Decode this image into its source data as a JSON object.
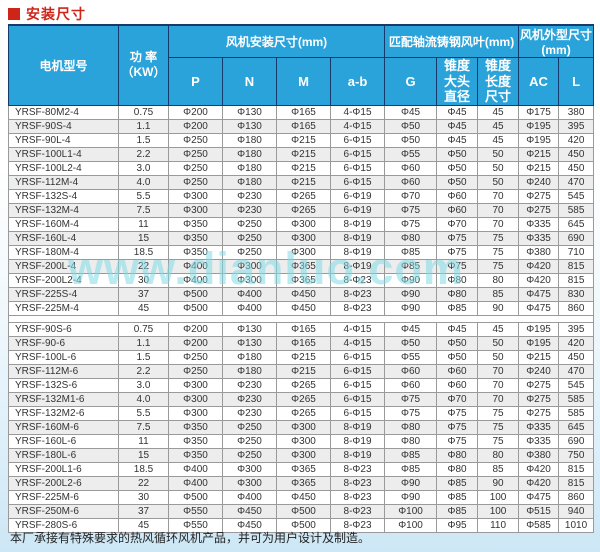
{
  "page": {
    "title": "安装尺寸",
    "watermark": "www.dianluo.com",
    "footer_note": "本厂承接有特殊要求的热风循环风机产品，并可为用户设计及制造。",
    "colors": {
      "header_blue": "#2aa2da",
      "title_red": "#cf2418",
      "navy_border": "#173a6d",
      "alt_row": "#ededed"
    }
  },
  "table": {
    "group_headers": {
      "model": "电机型号",
      "power_line1": "功 率",
      "power_line2": "（KW）",
      "install": "风机安装尺寸(mm)",
      "blade": "匹配轴流铸钢风叶(mm)",
      "outline": "风机外型尺寸(mm)"
    },
    "subheaders": [
      "P",
      "N",
      "M",
      "a-b",
      "G",
      "锥度大头直径",
      "锥度长度尺寸",
      "AC",
      "L"
    ],
    "sections": {
      "pole4": [
        [
          "YRSF-80M2-4",
          "0.75",
          "Φ200",
          "Φ130",
          "Φ165",
          "4-Φ15",
          "Φ45",
          "Φ45",
          "45",
          "Φ175",
          "380"
        ],
        [
          "YRSF-90S-4",
          "1.1",
          "Φ200",
          "Φ130",
          "Φ165",
          "4-Φ15",
          "Φ50",
          "Φ45",
          "45",
          "Φ195",
          "395"
        ],
        [
          "YRSF-90L-4",
          "1.5",
          "Φ250",
          "Φ180",
          "Φ215",
          "6-Φ15",
          "Φ50",
          "Φ45",
          "45",
          "Φ195",
          "420"
        ],
        [
          "YRSF-100L1-4",
          "2.2",
          "Φ250",
          "Φ180",
          "Φ215",
          "6-Φ15",
          "Φ55",
          "Φ50",
          "50",
          "Φ215",
          "450"
        ],
        [
          "YRSF-100L2-4",
          "3.0",
          "Φ250",
          "Φ180",
          "Φ215",
          "6-Φ15",
          "Φ60",
          "Φ50",
          "50",
          "Φ215",
          "450"
        ],
        [
          "YRSF-112M-4",
          "4.0",
          "Φ250",
          "Φ180",
          "Φ215",
          "6-Φ15",
          "Φ60",
          "Φ50",
          "50",
          "Φ240",
          "470"
        ],
        [
          "YRSF-132S-4",
          "5.5",
          "Φ300",
          "Φ230",
          "Φ265",
          "6-Φ19",
          "Φ70",
          "Φ60",
          "70",
          "Φ275",
          "545"
        ],
        [
          "YRSF-132M-4",
          "7.5",
          "Φ300",
          "Φ230",
          "Φ265",
          "6-Φ19",
          "Φ75",
          "Φ60",
          "70",
          "Φ275",
          "585"
        ],
        [
          "YRSF-160M-4",
          "11",
          "Φ350",
          "Φ250",
          "Φ300",
          "8-Φ19",
          "Φ75",
          "Φ70",
          "70",
          "Φ335",
          "645"
        ],
        [
          "YRSF-160L-4",
          "15",
          "Φ350",
          "Φ250",
          "Φ300",
          "8-Φ19",
          "Φ80",
          "Φ75",
          "75",
          "Φ335",
          "690"
        ],
        [
          "YRSF-180M-4",
          "18.5",
          "Φ350",
          "Φ250",
          "Φ300",
          "8-Φ19",
          "Φ85",
          "Φ75",
          "75",
          "Φ380",
          "710"
        ],
        [
          "YRSF-200L-4",
          "22",
          "Φ400",
          "Φ300",
          "Φ365",
          "8-Φ19",
          "Φ85",
          "Φ75",
          "75",
          "Φ420",
          "815"
        ],
        [
          "YRSF-200L2-4",
          "30",
          "Φ400",
          "Φ300",
          "Φ365",
          "8-Φ23",
          "Φ90",
          "Φ80",
          "80",
          "Φ420",
          "815"
        ],
        [
          "YRSF-225S-4",
          "37",
          "Φ500",
          "Φ400",
          "Φ450",
          "8-Φ23",
          "Φ90",
          "Φ80",
          "85",
          "Φ475",
          "830"
        ],
        [
          "YRSF-225M-4",
          "45",
          "Φ500",
          "Φ400",
          "Φ450",
          "8-Φ23",
          "Φ90",
          "Φ85",
          "90",
          "Φ475",
          "860"
        ]
      ],
      "pole6": [
        [
          "YRSF-90S-6",
          "0.75",
          "Φ200",
          "Φ130",
          "Φ165",
          "4-Φ15",
          "Φ45",
          "Φ45",
          "45",
          "Φ195",
          "395"
        ],
        [
          "YRSF-90-6",
          "1.1",
          "Φ200",
          "Φ130",
          "Φ165",
          "4-Φ15",
          "Φ50",
          "Φ50",
          "50",
          "Φ195",
          "420"
        ],
        [
          "YRSF-100L-6",
          "1.5",
          "Φ250",
          "Φ180",
          "Φ215",
          "6-Φ15",
          "Φ55",
          "Φ50",
          "50",
          "Φ215",
          "450"
        ],
        [
          "YRSF-112M-6",
          "2.2",
          "Φ250",
          "Φ180",
          "Φ215",
          "6-Φ15",
          "Φ60",
          "Φ60",
          "70",
          "Φ240",
          "470"
        ],
        [
          "YRSF-132S-6",
          "3.0",
          "Φ300",
          "Φ230",
          "Φ265",
          "6-Φ15",
          "Φ60",
          "Φ60",
          "70",
          "Φ275",
          "545"
        ],
        [
          "YRSF-132M1-6",
          "4.0",
          "Φ300",
          "Φ230",
          "Φ265",
          "6-Φ15",
          "Φ75",
          "Φ70",
          "70",
          "Φ275",
          "585"
        ],
        [
          "YRSF-132M2-6",
          "5.5",
          "Φ300",
          "Φ230",
          "Φ265",
          "6-Φ15",
          "Φ75",
          "Φ75",
          "75",
          "Φ275",
          "585"
        ],
        [
          "YRSF-160M-6",
          "7.5",
          "Φ350",
          "Φ250",
          "Φ300",
          "8-Φ19",
          "Φ80",
          "Φ75",
          "75",
          "Φ335",
          "645"
        ],
        [
          "YRSF-160L-6",
          "11",
          "Φ350",
          "Φ250",
          "Φ300",
          "8-Φ19",
          "Φ80",
          "Φ75",
          "75",
          "Φ335",
          "690"
        ],
        [
          "YRSF-180L-6",
          "15",
          "Φ350",
          "Φ250",
          "Φ300",
          "8-Φ19",
          "Φ85",
          "Φ80",
          "80",
          "Φ380",
          "750"
        ],
        [
          "YRSF-200L1-6",
          "18.5",
          "Φ400",
          "Φ300",
          "Φ365",
          "8-Φ23",
          "Φ85",
          "Φ80",
          "85",
          "Φ420",
          "815"
        ],
        [
          "YRSF-200L2-6",
          "22",
          "Φ400",
          "Φ300",
          "Φ365",
          "8-Φ23",
          "Φ90",
          "Φ85",
          "90",
          "Φ420",
          "815"
        ],
        [
          "YRSF-225M-6",
          "30",
          "Φ500",
          "Φ400",
          "Φ450",
          "8-Φ23",
          "Φ90",
          "Φ85",
          "100",
          "Φ475",
          "860"
        ],
        [
          "YRSF-250M-6",
          "37",
          "Φ550",
          "Φ450",
          "Φ500",
          "8-Φ23",
          "Φ100",
          "Φ85",
          "100",
          "Φ515",
          "940"
        ],
        [
          "YRSF-280S-6",
          "45",
          "Φ550",
          "Φ450",
          "Φ500",
          "8-Φ23",
          "Φ100",
          "Φ95",
          "110",
          "Φ585",
          "1010"
        ]
      ]
    }
  }
}
